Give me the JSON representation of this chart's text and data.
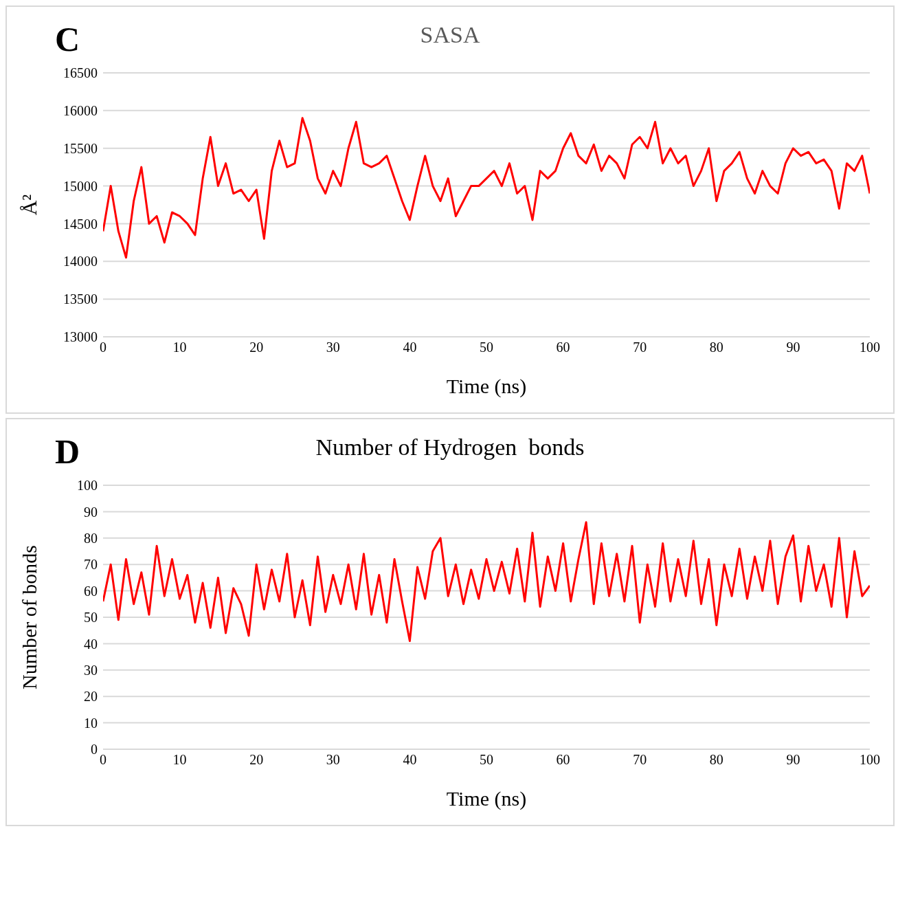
{
  "chart_data": [
    {
      "type": "line",
      "title": "SASA",
      "xlabel": "Time (ns)",
      "ylabel": "Å²",
      "annotations": [
        "C"
      ],
      "grid": "y",
      "marker": "none",
      "line_style": "solid",
      "xlim": [
        0,
        100
      ],
      "xticks": [
        0,
        10,
        20,
        30,
        40,
        50,
        60,
        70,
        80,
        90,
        100
      ],
      "ylim": [
        13000,
        16500
      ],
      "yticks": [
        13000,
        13500,
        14000,
        14500,
        15000,
        15500,
        16000,
        16500
      ],
      "x": [
        0,
        1,
        2,
        3,
        4,
        5,
        6,
        7,
        8,
        9,
        10,
        11,
        12,
        13,
        14,
        15,
        16,
        17,
        18,
        19,
        20,
        21,
        22,
        23,
        24,
        25,
        26,
        27,
        28,
        29,
        30,
        31,
        32,
        33,
        34,
        35,
        36,
        37,
        38,
        39,
        40,
        41,
        42,
        43,
        44,
        45,
        46,
        47,
        48,
        49,
        50,
        51,
        52,
        53,
        54,
        55,
        56,
        57,
        58,
        59,
        60,
        61,
        62,
        63,
        64,
        65,
        66,
        67,
        68,
        69,
        70,
        71,
        72,
        73,
        74,
        75,
        76,
        77,
        78,
        79,
        80,
        81,
        82,
        83,
        84,
        85,
        86,
        87,
        88,
        89,
        90,
        91,
        92,
        93,
        94,
        95,
        96,
        97,
        98,
        99,
        100
      ],
      "series": [
        {
          "color": "#ff0000",
          "values": [
            14400,
            15000,
            14400,
            14050,
            14800,
            15250,
            14500,
            14600,
            14250,
            14650,
            14600,
            14500,
            14350,
            15100,
            15650,
            15000,
            15300,
            14900,
            14950,
            14800,
            14950,
            14300,
            15200,
            15600,
            15250,
            15300,
            15900,
            15600,
            15100,
            14900,
            15200,
            15000,
            15500,
            15850,
            15300,
            15250,
            15300,
            15400,
            15100,
            14800,
            14550,
            15000,
            15400,
            15000,
            14800,
            15100,
            14600,
            14800,
            15000,
            15000,
            15100,
            15200,
            15000,
            15300,
            14900,
            15000,
            14550,
            15200,
            15100,
            15200,
            15500,
            15700,
            15400,
            15300,
            15550,
            15200,
            15400,
            15300,
            15100,
            15550,
            15650,
            15500,
            15850,
            15300,
            15500,
            15300,
            15400,
            15000,
            15200,
            15500,
            14800,
            15200,
            15300,
            15450,
            15100,
            14900,
            15200,
            15000,
            14900,
            15300,
            15500,
            15400,
            15450,
            15300,
            15350,
            15200,
            14700,
            15300,
            15200,
            15400,
            14900
          ]
        }
      ]
    },
    {
      "type": "line",
      "title": "Number of Hydrogen  bonds",
      "xlabel": "Time (ns)",
      "ylabel": "Number of bonds",
      "annotations": [
        "D"
      ],
      "grid": "y",
      "marker": "none",
      "line_style": "solid",
      "xlim": [
        0,
        100
      ],
      "xticks": [
        0,
        10,
        20,
        30,
        40,
        50,
        60,
        70,
        80,
        90,
        100
      ],
      "ylim": [
        0,
        100
      ],
      "yticks": [
        0,
        10,
        20,
        30,
        40,
        50,
        60,
        70,
        80,
        90,
        100
      ],
      "x": [
        0,
        1,
        2,
        3,
        4,
        5,
        6,
        7,
        8,
        9,
        10,
        11,
        12,
        13,
        14,
        15,
        16,
        17,
        18,
        19,
        20,
        21,
        22,
        23,
        24,
        25,
        26,
        27,
        28,
        29,
        30,
        31,
        32,
        33,
        34,
        35,
        36,
        37,
        38,
        39,
        40,
        41,
        42,
        43,
        44,
        45,
        46,
        47,
        48,
        49,
        50,
        51,
        52,
        53,
        54,
        55,
        56,
        57,
        58,
        59,
        60,
        61,
        62,
        63,
        64,
        65,
        66,
        67,
        68,
        69,
        70,
        71,
        72,
        73,
        74,
        75,
        76,
        77,
        78,
        79,
        80,
        81,
        82,
        83,
        84,
        85,
        86,
        87,
        88,
        89,
        90,
        91,
        92,
        93,
        94,
        95,
        96,
        97,
        98,
        99,
        100
      ],
      "series": [
        {
          "color": "#ff0000",
          "values": [
            56,
            70,
            49,
            72,
            55,
            67,
            51,
            77,
            58,
            72,
            57,
            66,
            48,
            63,
            46,
            65,
            44,
            61,
            55,
            43,
            70,
            53,
            68,
            56,
            74,
            50,
            64,
            47,
            73,
            52,
            66,
            55,
            70,
            53,
            74,
            51,
            66,
            48,
            72,
            56,
            41,
            69,
            57,
            75,
            80,
            58,
            70,
            55,
            68,
            57,
            72,
            60,
            71,
            59,
            76,
            56,
            82,
            54,
            73,
            60,
            78,
            56,
            72,
            86,
            55,
            78,
            58,
            74,
            56,
            77,
            48,
            70,
            54,
            78,
            56,
            72,
            58,
            79,
            55,
            72,
            47,
            70,
            58,
            76,
            57,
            73,
            60,
            79,
            55,
            73,
            81,
            56,
            77,
            60,
            70,
            54,
            80,
            50,
            75,
            58,
            62
          ]
        }
      ]
    }
  ]
}
